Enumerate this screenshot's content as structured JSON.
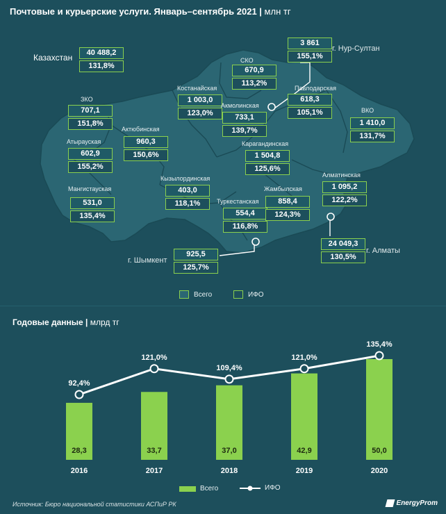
{
  "header": {
    "title": "Почтовые и курьерские услуги. Январь–сентябрь 2021",
    "unit": "млн тг"
  },
  "map": {
    "kazakhstan": {
      "label": "Казахстан",
      "value": "40 488,2",
      "ifo": "131,8%"
    },
    "regions": [
      {
        "key": "zko",
        "name": "ЗКО",
        "value": "707,1",
        "ifo": "151,8%"
      },
      {
        "key": "atyrau",
        "name": "Атырауская",
        "value": "602,9",
        "ifo": "155,2%"
      },
      {
        "key": "mangistau",
        "name": "Мангистауская",
        "value": "531,0",
        "ifo": "135,4%"
      },
      {
        "key": "aktobe",
        "name": "Актюбинская",
        "value": "960,3",
        "ifo": "150,6%"
      },
      {
        "key": "kostanay",
        "name": "Костанайская",
        "value": "1 003,0",
        "ifo": "123,0%"
      },
      {
        "key": "sko",
        "name": "СКО",
        "value": "670,9",
        "ifo": "113,2%"
      },
      {
        "key": "akmola",
        "name": "Акмолинская",
        "value": "733,1",
        "ifo": "139,7%"
      },
      {
        "key": "pavlodar",
        "name": "Павлодарская",
        "value": "618,3",
        "ifo": "105,1%"
      },
      {
        "key": "vko",
        "name": "ВКО",
        "value": "1 410,0",
        "ifo": "131,7%"
      },
      {
        "key": "karaganda",
        "name": "Карагандинская",
        "value": "1 504,8",
        "ifo": "125,6%"
      },
      {
        "key": "kyzylorda",
        "name": "Кызылординская",
        "value": "403,0",
        "ifo": "118,1%"
      },
      {
        "key": "turkestan",
        "name": "Туркестанская",
        "value": "554,4",
        "ifo": "116,8%"
      },
      {
        "key": "zhambyl",
        "name": "Жамбылская",
        "value": "858,4",
        "ifo": "124,3%"
      },
      {
        "key": "almaty-region",
        "name": "Алматинская",
        "value": "1 095,2",
        "ifo": "122,2%"
      }
    ],
    "cities": [
      {
        "key": "nur-sultan",
        "name": "г. Нур-Султан",
        "value": "3 861",
        "ifo": "155,1%"
      },
      {
        "key": "shymkent",
        "name": "г. Шымкент",
        "value": "925,5",
        "ifo": "125,7%"
      },
      {
        "key": "almaty",
        "name": "г. Алматы",
        "value": "24 049,3",
        "ifo": "130,5%"
      }
    ],
    "legend": {
      "total": "Всего",
      "ifo": "ИФО"
    }
  },
  "annual": {
    "title": "Годовые данные",
    "unit": "млрд тг"
  },
  "chart_data": {
    "type": "bar",
    "categories": [
      "2016",
      "2017",
      "2018",
      "2019",
      "2020"
    ],
    "series": [
      {
        "name": "Всего",
        "type": "bar",
        "values": [
          28.3,
          33.7,
          37.0,
          42.9,
          50.0
        ],
        "labels": [
          "28,3",
          "33,7",
          "37,0",
          "42,9",
          "50,0"
        ]
      },
      {
        "name": "ИФО",
        "type": "line",
        "values": [
          92.4,
          121.0,
          109.4,
          121.0,
          135.4
        ],
        "labels": [
          "92,4%",
          "121,0%",
          "109,4%",
          "121,0%",
          "135,4%"
        ]
      }
    ],
    "legend": {
      "position": "bottom"
    },
    "grid": false
  },
  "colors": {
    "background": "#1d4f5c",
    "map_fill": "#2b6673",
    "accent_green": "#8bd14e",
    "line": "#ffffff"
  },
  "footer": {
    "source": "Источник: Бюро национальной статистики АСПиР РК",
    "brand": "EnergyProm"
  }
}
